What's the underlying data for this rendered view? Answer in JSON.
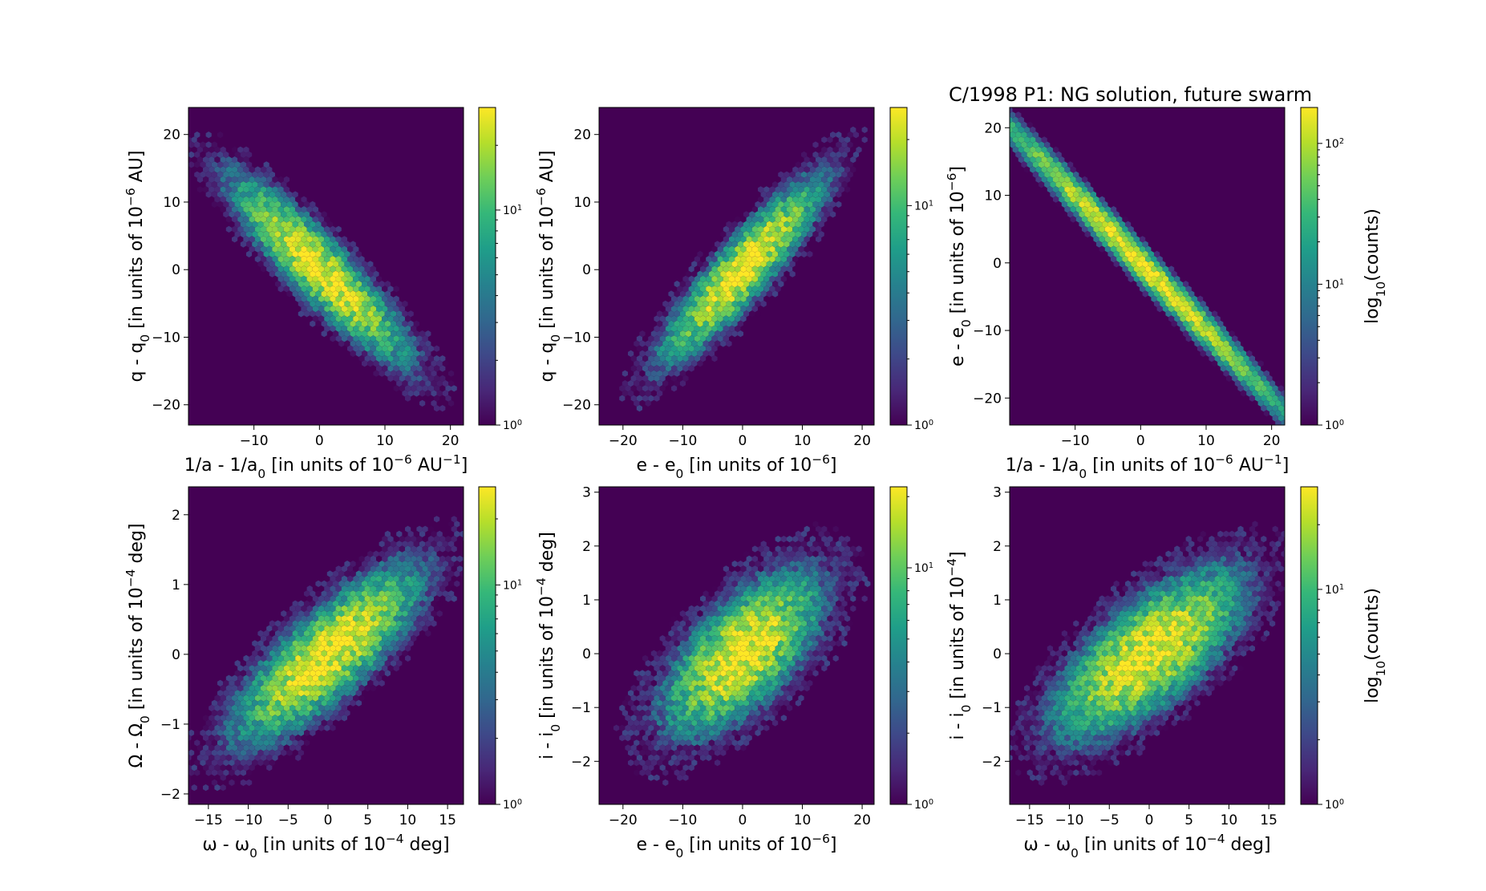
{
  "figure": {
    "title": "C/1998 P1:  NG solution, future swarm"
  },
  "chart_data": [
    {
      "type": "heatmap",
      "subtype": "hexbin",
      "colormap": "viridis",
      "xlabel": "1/a - 1/a₀ [in units of 10⁻⁶ AU⁻¹]",
      "ylabel": "q - q₀ [in units of 10⁻⁶ AU]",
      "xlim": [
        -20,
        22
      ],
      "ylim": [
        -23,
        24
      ],
      "xticks": [
        "−10",
        "0",
        "10",
        "20"
      ],
      "xtick_values": [
        -10,
        0,
        10,
        20
      ],
      "yticks": [
        "−20",
        "−10",
        "0",
        "10",
        "20"
      ],
      "ytick_values": [
        -20,
        -10,
        0,
        10,
        20
      ],
      "distribution": {
        "center": [
          0,
          0
        ],
        "std": [
          7,
          7
        ],
        "correlation": -0.9
      },
      "colorbar": {
        "scale": "log",
        "range": [
          1,
          30
        ],
        "ticks": [
          "10⁰",
          "10¹"
        ],
        "tick_values": [
          1,
          10
        ],
        "label": ""
      }
    },
    {
      "type": "heatmap",
      "subtype": "hexbin",
      "colormap": "viridis",
      "xlabel": "e - e₀ [in units of 10⁻⁶]",
      "ylabel": "q - q₀ [in units of 10⁻⁶ AU]",
      "xlim": [
        -24,
        22
      ],
      "ylim": [
        -23,
        24
      ],
      "xticks": [
        "−20",
        "−10",
        "0",
        "10",
        "20"
      ],
      "xtick_values": [
        -20,
        -10,
        0,
        10,
        20
      ],
      "yticks": [
        "−20",
        "−10",
        "0",
        "10",
        "20"
      ],
      "ytick_values": [
        -20,
        -10,
        0,
        10,
        20
      ],
      "distribution": {
        "center": [
          0,
          0
        ],
        "std": [
          7,
          7
        ],
        "correlation": 0.9
      },
      "colorbar": {
        "scale": "log",
        "range": [
          1,
          28
        ],
        "ticks": [
          "10⁰",
          "10¹"
        ],
        "tick_values": [
          1,
          10
        ],
        "label": ""
      }
    },
    {
      "type": "heatmap",
      "subtype": "hexbin",
      "colormap": "viridis",
      "xlabel": "1/a - 1/a₀ [in units of 10⁻⁶ AU⁻¹]",
      "ylabel": "e - e₀ [in units of 10⁻⁶]",
      "xlim": [
        -20,
        22
      ],
      "ylim": [
        -24,
        23
      ],
      "xticks": [
        "−10",
        "0",
        "10",
        "20"
      ],
      "xtick_values": [
        -10,
        0,
        10,
        20
      ],
      "yticks": [
        "−20",
        "−10",
        "0",
        "10",
        "20"
      ],
      "ytick_values": [
        -20,
        -10,
        0,
        10,
        20
      ],
      "distribution": {
        "center": [
          0,
          0
        ],
        "std": [
          7,
          7
        ],
        "correlation": -1.0
      },
      "colorbar": {
        "scale": "log",
        "range": [
          1,
          180
        ],
        "ticks": [
          "10⁰",
          "10¹",
          "10²"
        ],
        "tick_values": [
          1,
          10,
          100
        ],
        "label": "log₁₀(counts)"
      }
    },
    {
      "type": "heatmap",
      "subtype": "hexbin",
      "colormap": "viridis",
      "xlabel": "ω - ω₀ [in units of 10⁻⁴ deg]",
      "ylabel": "Ω - Ω₀ [in units of 10⁻⁴ deg]",
      "xlim": [
        -17.5,
        17
      ],
      "ylim": [
        -2.15,
        2.4
      ],
      "xticks": [
        "−15",
        "−10",
        "−5",
        "0",
        "5",
        "10",
        "15"
      ],
      "xtick_values": [
        -15,
        -10,
        -5,
        0,
        5,
        10,
        15
      ],
      "yticks": [
        "−2",
        "−1",
        "0",
        "1",
        "2"
      ],
      "ytick_values": [
        -2,
        -1,
        0,
        1,
        2
      ],
      "distribution": {
        "center": [
          0,
          0
        ],
        "std": [
          6,
          0.65
        ],
        "correlation": 0.8
      },
      "colorbar": {
        "scale": "log",
        "range": [
          1,
          28
        ],
        "ticks": [
          "10⁰",
          "10¹"
        ],
        "tick_values": [
          1,
          10
        ],
        "label": ""
      }
    },
    {
      "type": "heatmap",
      "subtype": "hexbin",
      "colormap": "viridis",
      "xlabel": "e - e₀ [in units of 10⁻⁶]",
      "ylabel": "i - i₀ [in units of 10⁻⁴ deg]",
      "xlim": [
        -24,
        22
      ],
      "ylim": [
        -2.8,
        3.1
      ],
      "xticks": [
        "−20",
        "−10",
        "0",
        "10",
        "20"
      ],
      "xtick_values": [
        -20,
        -10,
        0,
        10,
        20
      ],
      "yticks": [
        "−2",
        "−1",
        "0",
        "1",
        "2",
        "3"
      ],
      "ytick_values": [
        -2,
        -1,
        0,
        1,
        2,
        3
      ],
      "distribution": {
        "center": [
          0,
          0
        ],
        "std": [
          7,
          0.8
        ],
        "correlation": 0.65
      },
      "colorbar": {
        "scale": "log",
        "range": [
          1,
          22
        ],
        "ticks": [
          "10⁰",
          "10¹"
        ],
        "tick_values": [
          1,
          10
        ],
        "label": ""
      }
    },
    {
      "type": "heatmap",
      "subtype": "hexbin",
      "colormap": "viridis",
      "xlabel": "ω - ω₀ [in units of 10⁻⁴ deg]",
      "ylabel": "i - i₀ [in units of 10⁻⁴]",
      "xlim": [
        -17.5,
        17
      ],
      "ylim": [
        -2.8,
        3.1
      ],
      "xticks": [
        "−15",
        "−10",
        "−5",
        "0",
        "5",
        "10",
        "15"
      ],
      "xtick_values": [
        -15,
        -10,
        -5,
        0,
        5,
        10,
        15
      ],
      "yticks": [
        "−2",
        "−1",
        "0",
        "1",
        "2",
        "3"
      ],
      "ytick_values": [
        -2,
        -1,
        0,
        1,
        2,
        3
      ],
      "distribution": {
        "center": [
          0,
          0
        ],
        "std": [
          6,
          0.8
        ],
        "correlation": 0.7
      },
      "colorbar": {
        "scale": "log",
        "range": [
          1,
          30
        ],
        "ticks": [
          "10⁰",
          "10¹"
        ],
        "tick_values": [
          1,
          10
        ],
        "label": "log₁₀(counts)"
      }
    }
  ]
}
